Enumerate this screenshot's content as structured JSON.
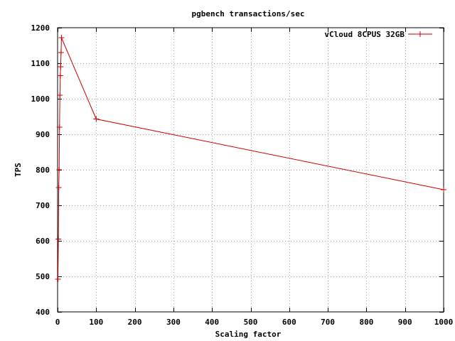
{
  "chart_data": {
    "type": "line",
    "title": "pgbench transactions/sec",
    "xlabel": "Scaling factor",
    "ylabel": "TPS",
    "xlim": [
      0,
      1000
    ],
    "ylim": [
      400,
      1200
    ],
    "x_ticks": [
      0,
      100,
      200,
      300,
      400,
      500,
      600,
      700,
      800,
      900,
      1000
    ],
    "y_ticks": [
      400,
      500,
      600,
      700,
      800,
      900,
      1000,
      1100,
      1200
    ],
    "grid": true,
    "legend_position": "top-right",
    "series": [
      {
        "name": "vCloud 8CPUS 32GB",
        "color": "#cc0000",
        "marker": "plus",
        "x": [
          1,
          2,
          3,
          4,
          5,
          6,
          7,
          8,
          9,
          10,
          100,
          1000
        ],
        "y": [
          492,
          605,
          750,
          800,
          920,
          1010,
          1065,
          1090,
          1130,
          1172,
          943,
          744
        ]
      }
    ]
  }
}
